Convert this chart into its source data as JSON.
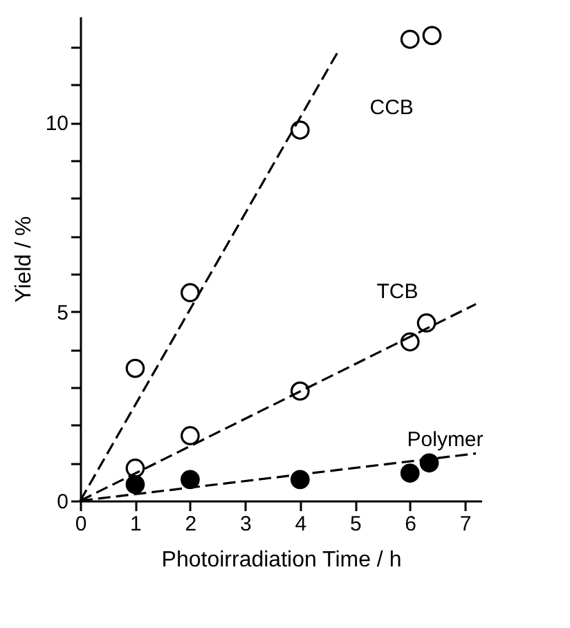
{
  "chart_data": {
    "type": "scatter",
    "xlabel": "Photoirradiation Time / h",
    "ylabel": "Yield / %",
    "xlim": [
      0,
      7.3
    ],
    "ylim": [
      0,
      12.8
    ],
    "xticks": [
      0,
      1,
      2,
      3,
      4,
      5,
      6,
      7
    ],
    "yticks": [
      0,
      {
        "value": 1,
        "label": null
      },
      {
        "value": 2,
        "label": null
      },
      {
        "value": 3,
        "label": null
      },
      {
        "value": 4,
        "label": null
      },
      5,
      {
        "value": 6,
        "label": null
      },
      {
        "value": 7,
        "label": null
      },
      {
        "value": 8,
        "label": null
      },
      {
        "value": 9,
        "label": null
      },
      10,
      {
        "value": 11,
        "label": null
      },
      {
        "value": 12,
        "label": null
      }
    ],
    "grid": false,
    "series": [
      {
        "name": "CCB",
        "marker": "circle",
        "color": "#ffffff",
        "x": [
          1,
          2,
          4,
          6,
          6.4
        ],
        "values": [
          3.5,
          5.5,
          9.8,
          12.2,
          12.3
        ]
      },
      {
        "name": "TCB",
        "marker": "circle",
        "color": "#ffffff",
        "x": [
          1,
          2,
          4,
          6,
          6.3
        ],
        "values": [
          0.86,
          1.72,
          2.9,
          4.2,
          4.7
        ]
      },
      {
        "name": "Polymer",
        "marker": "circle",
        "color": "#000000",
        "x": [
          1,
          2,
          4,
          6,
          6.35
        ],
        "values": [
          0.43,
          0.56,
          0.56,
          0.73,
          1.0
        ]
      },
      {
        "type": "line",
        "marker": "none",
        "color": "#000000",
        "line_style": "dashed",
        "x": [
          0,
          4.7
        ],
        "values": [
          0,
          11.9
        ]
      },
      {
        "type": "line",
        "marker": "none",
        "color": "#000000",
        "line_style": "dashed",
        "x": [
          0,
          7.2
        ],
        "values": [
          0,
          5.2
        ]
      },
      {
        "type": "line",
        "marker": "none",
        "color": "#000000",
        "line_style": "dashed",
        "x": [
          0,
          7.2
        ],
        "values": [
          0,
          1.25
        ]
      }
    ]
  }
}
